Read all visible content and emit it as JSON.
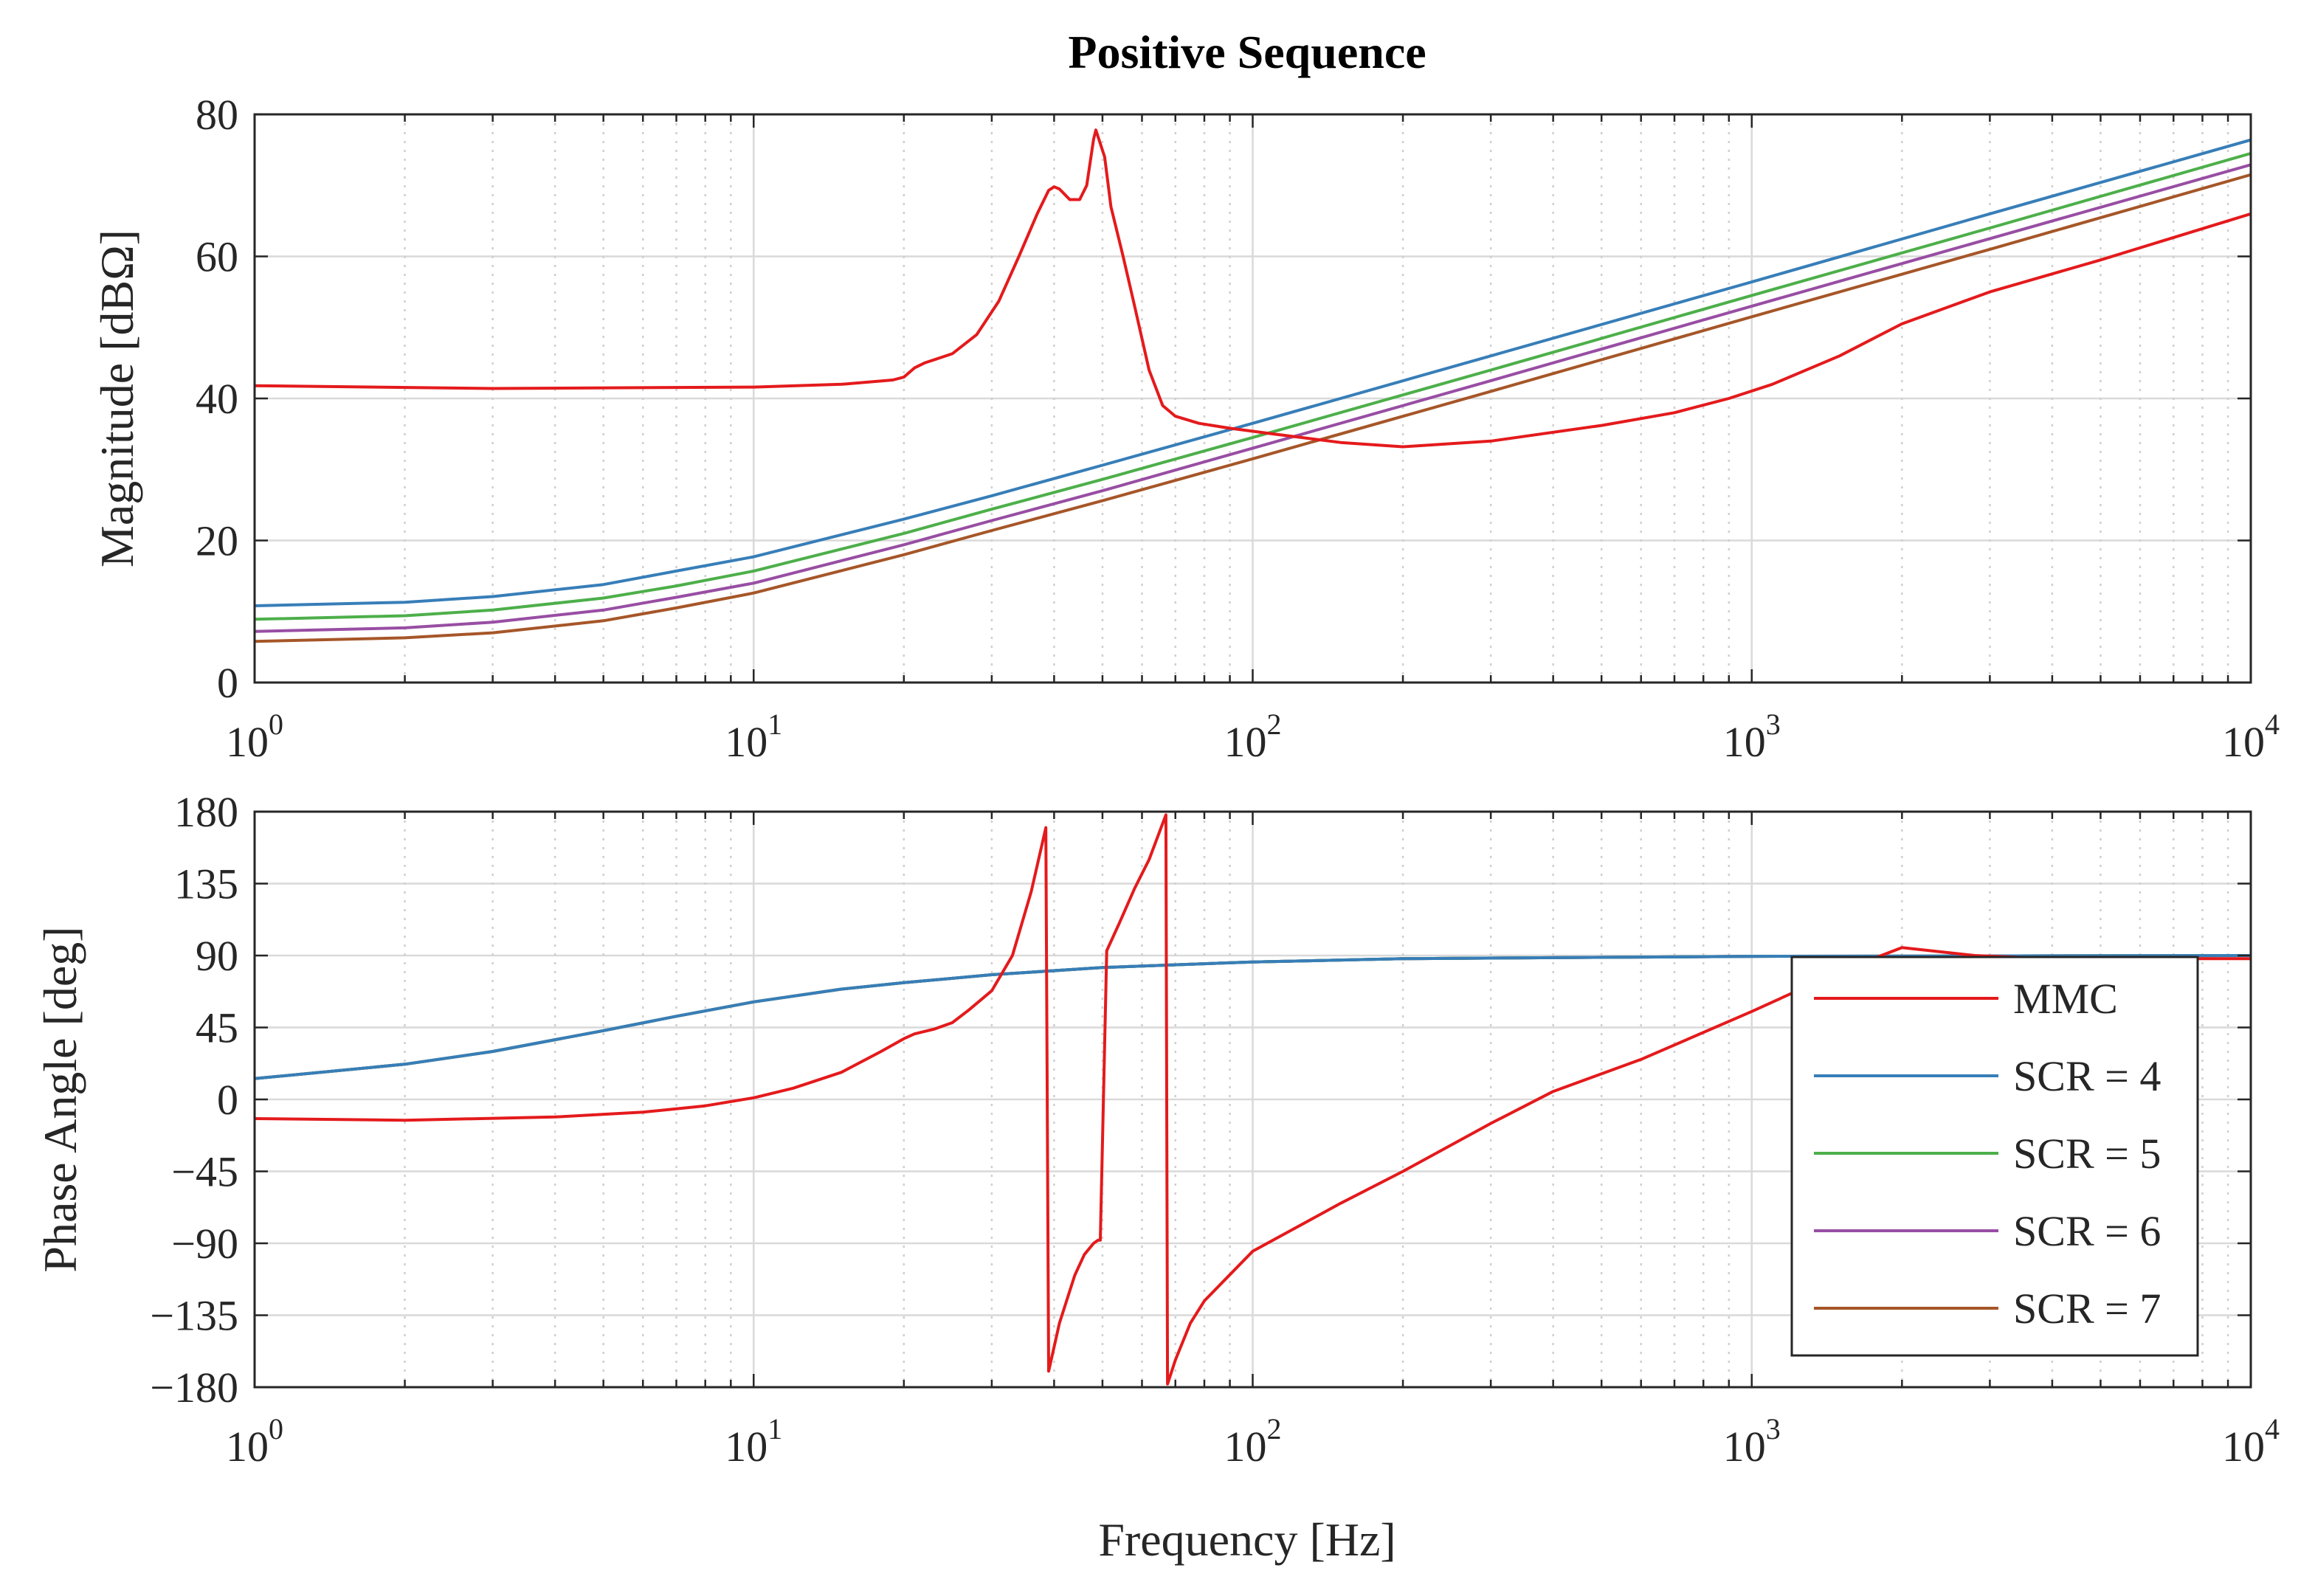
{
  "chart_data": {
    "type": "line",
    "title": "Positive Sequence",
    "xscale": "log",
    "xlabel": "Frequency [Hz]",
    "xlim": [
      1,
      10000
    ],
    "x_tick_labels": [
      {
        "base": "10",
        "exp": "0"
      },
      {
        "base": "10",
        "exp": "1"
      },
      {
        "base": "10",
        "exp": "2"
      },
      {
        "base": "10",
        "exp": "3"
      },
      {
        "base": "10",
        "exp": "4"
      }
    ],
    "legend": {
      "placement": "lower-right of bottom panel",
      "entries": [
        {
          "label": "MMC",
          "color": "#e41a1c"
        },
        {
          "label": "SCR = 4",
          "color": "#377eb8"
        },
        {
          "label": "SCR = 5",
          "color": "#4daf4a"
        },
        {
          "label": "SCR = 6",
          "color": "#984ea3"
        },
        {
          "label": "SCR = 7",
          "color": "#a65628"
        }
      ]
    },
    "panels": [
      {
        "name": "magnitude",
        "ylabel": "Magnitude [dBΩ]",
        "ylim": [
          0,
          80
        ],
        "y_tick_labels": [
          "0",
          "20",
          "40",
          "60",
          "80"
        ],
        "series": [
          {
            "name": "MMC",
            "color": "#e41a1c",
            "points": [
              [
                1,
                41.8
              ],
              [
                3,
                41.4
              ],
              [
                10,
                41.6
              ],
              [
                15,
                42.0
              ],
              [
                19,
                42.6
              ],
              [
                20,
                43.0
              ],
              [
                21,
                44.3
              ],
              [
                22,
                45.0
              ],
              [
                25,
                46.3
              ],
              [
                28,
                49.0
              ],
              [
                31,
                53.7
              ],
              [
                34,
                60.0
              ],
              [
                37,
                66.0
              ],
              [
                39,
                69.3
              ],
              [
                40,
                69.8
              ],
              [
                41,
                69.5
              ],
              [
                43,
                68.0
              ],
              [
                45,
                68.0
              ],
              [
                46.5,
                70.0
              ],
              [
                48,
                76.5
              ],
              [
                48.5,
                77.8
              ],
              [
                50.5,
                74.0
              ],
              [
                52,
                67.0
              ],
              [
                55,
                60.0
              ],
              [
                58,
                53.0
              ],
              [
                62,
                44.0
              ],
              [
                66,
                39.0
              ],
              [
                70,
                37.5
              ],
              [
                78,
                36.5
              ],
              [
                90,
                35.8
              ],
              [
                110,
                35.0
              ],
              [
                150,
                33.8
              ],
              [
                200,
                33.2
              ],
              [
                300,
                34.0
              ],
              [
                500,
                36.2
              ],
              [
                700,
                38.0
              ],
              [
                900,
                40.0
              ],
              [
                1100,
                42.0
              ],
              [
                1500,
                46.0
              ],
              [
                2000,
                50.5
              ],
              [
                3000,
                55.0
              ],
              [
                5000,
                59.5
              ],
              [
                10000,
                66.0
              ]
            ]
          },
          {
            "name": "SCR = 4",
            "color": "#377eb8",
            "points": [
              [
                1,
                10.8
              ],
              [
                2,
                11.3
              ],
              [
                3,
                12.1
              ],
              [
                5,
                13.8
              ],
              [
                7,
                15.7
              ],
              [
                10,
                17.7
              ],
              [
                20,
                23.0
              ],
              [
                30,
                26.3
              ],
              [
                50,
                30.6
              ],
              [
                100,
                36.5
              ],
              [
                300,
                46.0
              ],
              [
                1000,
                56.4
              ],
              [
                3000,
                66.0
              ],
              [
                10000,
                76.4
              ]
            ]
          },
          {
            "name": "SCR = 5",
            "color": "#4daf4a",
            "points": [
              [
                1,
                8.9
              ],
              [
                2,
                9.4
              ],
              [
                3,
                10.2
              ],
              [
                5,
                11.9
              ],
              [
                7,
                13.6
              ],
              [
                10,
                15.7
              ],
              [
                20,
                21.0
              ],
              [
                30,
                24.4
              ],
              [
                50,
                28.6
              ],
              [
                100,
                34.5
              ],
              [
                300,
                44.0
              ],
              [
                1000,
                54.5
              ],
              [
                3000,
                64.0
              ],
              [
                10000,
                74.5
              ]
            ]
          },
          {
            "name": "SCR = 6",
            "color": "#984ea3",
            "points": [
              [
                1,
                7.2
              ],
              [
                2,
                7.7
              ],
              [
                3,
                8.5
              ],
              [
                5,
                10.2
              ],
              [
                7,
                12.0
              ],
              [
                10,
                14.0
              ],
              [
                20,
                19.4
              ],
              [
                30,
                22.8
              ],
              [
                50,
                27.0
              ],
              [
                100,
                33.0
              ],
              [
                300,
                42.5
              ],
              [
                1000,
                53.0
              ],
              [
                3000,
                62.5
              ],
              [
                10000,
                72.9
              ]
            ]
          },
          {
            "name": "SCR = 7",
            "color": "#a65628",
            "points": [
              [
                1,
                5.8
              ],
              [
                2,
                6.3
              ],
              [
                3,
                7.0
              ],
              [
                5,
                8.7
              ],
              [
                7,
                10.5
              ],
              [
                10,
                12.6
              ],
              [
                20,
                18.0
              ],
              [
                30,
                21.4
              ],
              [
                50,
                25.6
              ],
              [
                100,
                31.5
              ],
              [
                300,
                41.0
              ],
              [
                1000,
                51.5
              ],
              [
                3000,
                61.0
              ],
              [
                10000,
                71.5
              ]
            ]
          }
        ]
      },
      {
        "name": "phase",
        "ylabel": "Phase Angle [deg]",
        "ylim": [
          -180,
          180
        ],
        "y_tick_labels": [
          "−180",
          "−135",
          "−90",
          "−45",
          "0",
          "45",
          "90",
          "135",
          "180"
        ],
        "series": [
          {
            "name": "MMC",
            "color": "#e41a1c",
            "points": [
              [
                1,
                -12
              ],
              [
                2,
                -13
              ],
              [
                4,
                -11
              ],
              [
                6,
                -8
              ],
              [
                8,
                -4
              ],
              [
                10,
                1
              ],
              [
                12,
                7
              ],
              [
                15,
                17
              ],
              [
                18,
                30
              ],
              [
                20,
                38
              ],
              [
                21,
                41
              ],
              [
                23,
                44
              ],
              [
                25,
                48
              ],
              [
                27,
                56
              ],
              [
                30,
                68
              ],
              [
                33,
                90
              ],
              [
                36,
                130
              ],
              [
                38.5,
                170
              ],
              [
                39,
                -170
              ],
              [
                41,
                -140
              ],
              [
                44,
                -110
              ],
              [
                46,
                -97
              ],
              [
                48,
                -90
              ],
              [
                49,
                -88
              ],
              [
                49.5,
                -88
              ],
              [
                51,
                93
              ],
              [
                54,
                110
              ],
              [
                58,
                132
              ],
              [
                62,
                150
              ],
              [
                67,
                178
              ],
              [
                67.5,
                -178
              ],
              [
                70,
                -163
              ],
              [
                75,
                -140
              ],
              [
                80,
                -126
              ],
              [
                100,
                -95
              ],
              [
                150,
                -65
              ],
              [
                200,
                -45
              ],
              [
                300,
                -15
              ],
              [
                400,
                5
              ],
              [
                600,
                25
              ],
              [
                1000,
                55
              ],
              [
                1500,
                80
              ],
              [
                2000,
                95
              ],
              [
                2800,
                90
              ],
              [
                4000,
                88
              ],
              [
                10000,
                88
              ]
            ]
          },
          {
            "name": "SCR = 4",
            "color": "#377eb8",
            "points": [
              [
                1,
                13
              ],
              [
                2,
                22
              ],
              [
                3,
                30
              ],
              [
                5,
                43
              ],
              [
                7,
                52
              ],
              [
                10,
                61
              ],
              [
                15,
                69
              ],
              [
                20,
                73
              ],
              [
                30,
                78
              ],
              [
                50,
                82.5
              ],
              [
                100,
                86
              ],
              [
                200,
                88
              ],
              [
                1000,
                89.5
              ],
              [
                10000,
                90
              ]
            ]
          },
          {
            "name": "SCR = 5",
            "color": "#4daf4a",
            "points": [
              [
                1,
                13
              ],
              [
                2,
                22
              ],
              [
                3,
                30
              ],
              [
                5,
                43
              ],
              [
                7,
                52
              ],
              [
                10,
                61
              ],
              [
                15,
                69
              ],
              [
                20,
                73
              ],
              [
                30,
                78
              ],
              [
                50,
                82.5
              ],
              [
                100,
                86
              ],
              [
                200,
                88
              ],
              [
                1000,
                89.5
              ],
              [
                10000,
                90
              ]
            ]
          },
          {
            "name": "SCR = 6",
            "color": "#984ea3",
            "points": [
              [
                1,
                13
              ],
              [
                2,
                22
              ],
              [
                3,
                30
              ],
              [
                5,
                43
              ],
              [
                7,
                52
              ],
              [
                10,
                61
              ],
              [
                15,
                69
              ],
              [
                20,
                73
              ],
              [
                30,
                78
              ],
              [
                50,
                82.5
              ],
              [
                100,
                86
              ],
              [
                200,
                88
              ],
              [
                1000,
                89.5
              ],
              [
                10000,
                90
              ]
            ]
          },
          {
            "name": "SCR = 7",
            "color": "#a65628",
            "points": [
              [
                1,
                13
              ],
              [
                2,
                22
              ],
              [
                3,
                30
              ],
              [
                5,
                43
              ],
              [
                7,
                52
              ],
              [
                10,
                61
              ],
              [
                15,
                69
              ],
              [
                20,
                73
              ],
              [
                30,
                78
              ],
              [
                50,
                82.5
              ],
              [
                100,
                86
              ],
              [
                200,
                88
              ],
              [
                1000,
                89.5
              ],
              [
                10000,
                90
              ]
            ]
          }
        ]
      }
    ]
  }
}
